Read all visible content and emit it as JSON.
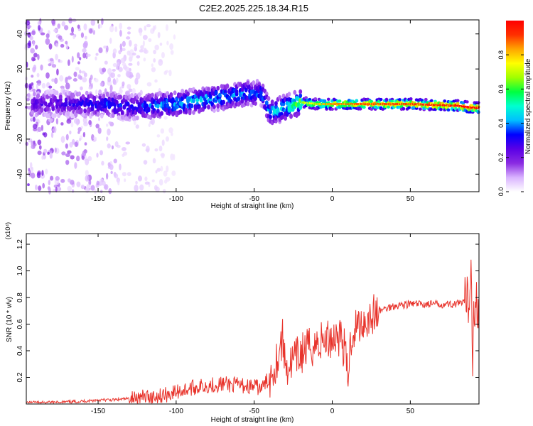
{
  "title": "C2E2.2025.225.18.34.R15",
  "chart_data": [
    {
      "type": "heatmap",
      "xlabel": "Height of straight line (km)",
      "ylabel": "Frequency (Hz)",
      "xlim": [
        -196,
        94
      ],
      "ylim": [
        -50,
        48
      ],
      "x_ticks": [
        -150,
        -100,
        -50,
        0,
        50
      ],
      "y_ticks": [
        -40,
        -20,
        0,
        20,
        40
      ],
      "grid": false,
      "colorbar": {
        "label": "Normalized spectral amplitude",
        "range": [
          0,
          1
        ],
        "ticks": [
          0.0,
          0.2,
          0.4,
          0.6,
          0.8
        ],
        "colors": [
          "#ffffff",
          "#d9b3ff",
          "#8a2be2",
          "#5a00e6",
          "#0000ff",
          "#00bfff",
          "#00ffd0",
          "#00ff40",
          "#a0ff00",
          "#ffff00",
          "#ffa500",
          "#ff3000",
          "#ff0000"
        ]
      },
      "ridge": [
        {
          "x": -185,
          "y": 0,
          "amp": 0.25
        },
        {
          "x": -165,
          "y": 0,
          "amp": 0.28
        },
        {
          "x": -145,
          "y": 0,
          "amp": 0.35
        },
        {
          "x": -130,
          "y": -2,
          "amp": 0.32
        },
        {
          "x": -115,
          "y": -1,
          "amp": 0.38
        },
        {
          "x": -100,
          "y": 0,
          "amp": 0.42
        },
        {
          "x": -85,
          "y": 2,
          "amp": 0.45
        },
        {
          "x": -70,
          "y": 4,
          "amp": 0.42
        },
        {
          "x": -55,
          "y": 6,
          "amp": 0.4
        },
        {
          "x": -45,
          "y": 6,
          "amp": 0.38
        },
        {
          "x": -40,
          "y": -5,
          "amp": 0.42
        },
        {
          "x": -30,
          "y": -2,
          "amp": 0.5
        },
        {
          "x": -20,
          "y": 1,
          "amp": 0.62
        },
        {
          "x": -10,
          "y": 0,
          "amp": 0.7
        },
        {
          "x": 0,
          "y": 0,
          "amp": 0.78
        },
        {
          "x": 20,
          "y": 0,
          "amp": 0.82
        },
        {
          "x": 50,
          "y": 0,
          "amp": 0.85
        },
        {
          "x": 80,
          "y": -1,
          "amp": 0.9
        },
        {
          "x": 90,
          "y": -2,
          "amp": 0.95
        }
      ]
    },
    {
      "type": "line",
      "xlabel": "Height of straight line (km)",
      "ylabel": "SNR (10 * v/v)",
      "y_multiplier": "(x10⁴)",
      "xlim": [
        -196,
        94
      ],
      "ylim": [
        0,
        1.28
      ],
      "x_ticks": [
        -150,
        -100,
        -50,
        0,
        50
      ],
      "y_ticks": [
        0.2,
        0.4,
        0.6,
        0.8,
        1.0,
        1.2
      ],
      "grid": false,
      "series": [
        {
          "color": "#e8332b",
          "x": [
            -196,
            -180,
            -160,
            -150,
            -140,
            -130,
            -120,
            -110,
            -100,
            -90,
            -80,
            -70,
            -60,
            -50,
            -45,
            -40,
            -35,
            -32,
            -30,
            -28,
            -25,
            -20,
            -15,
            -10,
            -5,
            0,
            5,
            8,
            10,
            12,
            15,
            20,
            25,
            30,
            35,
            40,
            50,
            60,
            70,
            80,
            85,
            88,
            89,
            90,
            91,
            92,
            94
          ],
          "y": [
            0.01,
            0.01,
            0.02,
            0.03,
            0.03,
            0.04,
            0.05,
            0.06,
            0.09,
            0.12,
            0.14,
            0.15,
            0.14,
            0.13,
            0.12,
            0.2,
            0.35,
            0.5,
            0.3,
            0.28,
            0.32,
            0.38,
            0.42,
            0.45,
            0.48,
            0.5,
            0.52,
            0.4,
            0.2,
            0.5,
            0.58,
            0.62,
            0.66,
            0.7,
            0.72,
            0.74,
            0.75,
            0.75,
            0.75,
            0.75,
            0.76,
            0.8,
            1.1,
            0.35,
            0.78,
            0.75,
            0.75
          ]
        }
      ]
    }
  ]
}
